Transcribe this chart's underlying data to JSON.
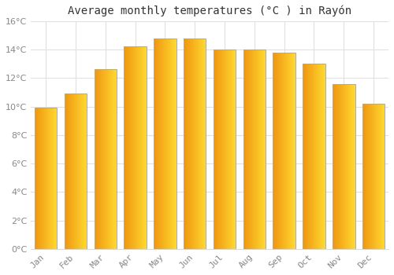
{
  "title": "Average monthly temperatures (°C ) in Rayón",
  "months": [
    "Jan",
    "Feb",
    "Mar",
    "Apr",
    "May",
    "Jun",
    "Jul",
    "Aug",
    "Sep",
    "Oct",
    "Nov",
    "Dec"
  ],
  "values": [
    9.9,
    10.9,
    12.6,
    14.2,
    14.8,
    14.8,
    14.0,
    14.0,
    13.8,
    13.0,
    11.6,
    10.2
  ],
  "bar_color_left": "#F5A623",
  "bar_color_right": "#FFD040",
  "bar_edge_color": "#999977",
  "ylim": [
    0,
    16
  ],
  "yticks": [
    0,
    2,
    4,
    6,
    8,
    10,
    12,
    14,
    16
  ],
  "ytick_labels": [
    "0°C",
    "2°C",
    "4°C",
    "6°C",
    "8°C",
    "10°C",
    "12°C",
    "14°C",
    "16°C"
  ],
  "background_color": "#FFFFFF",
  "grid_color": "#E0E0E0",
  "title_fontsize": 10,
  "tick_fontsize": 8,
  "title_color": "#333333",
  "tick_color": "#888888",
  "bar_width": 0.75
}
